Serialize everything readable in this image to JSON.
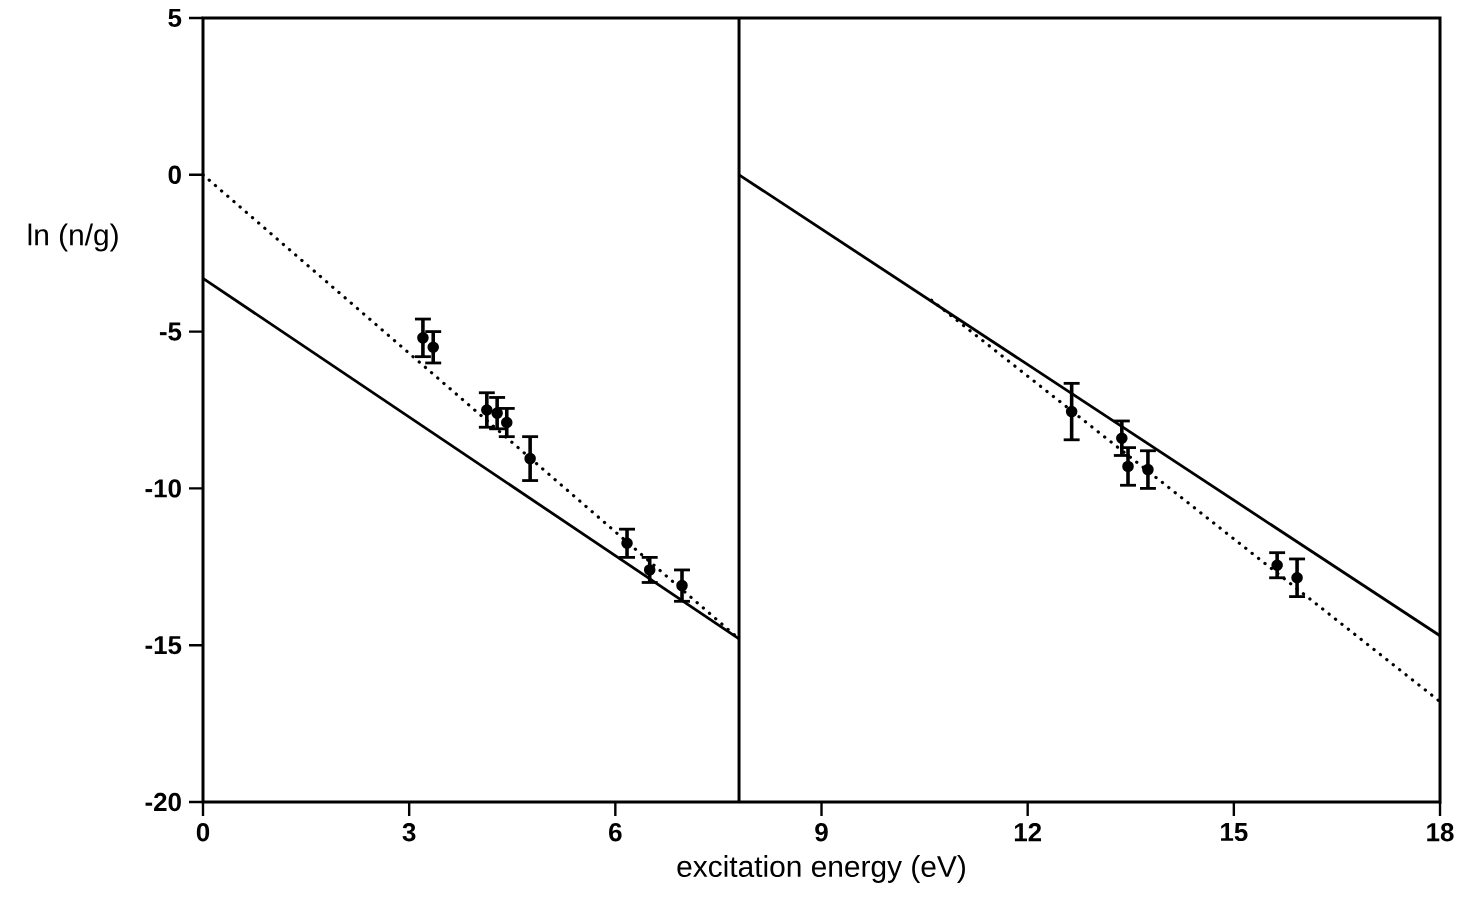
{
  "chart_data": {
    "type": "scatter",
    "xlabel": "excitation  energy  (eV)",
    "ylabel": "ln  (n/g)",
    "xlim": [
      0,
      18
    ],
    "ylim": [
      -20,
      5
    ],
    "xticks": [
      0,
      3,
      6,
      9,
      12,
      15,
      18
    ],
    "yticks": [
      -20,
      -15,
      -10,
      -5,
      0,
      5
    ],
    "marker": "circle",
    "series": [
      {
        "color": "#000000",
        "x": [
          3.2,
          3.35,
          4.13,
          4.28,
          4.42,
          4.76,
          6.17,
          6.5,
          6.97,
          12.64,
          13.37,
          13.46,
          13.75,
          15.63,
          15.92
        ],
        "values": [
          -5.2,
          -5.5,
          -7.5,
          -7.6,
          -7.9,
          -9.05,
          -11.75,
          -12.6,
          -13.1,
          -7.55,
          -8.4,
          -9.3,
          -9.4,
          -12.45,
          -12.85
        ],
        "errors": [
          0.6,
          0.5,
          0.55,
          0.5,
          0.45,
          0.7,
          0.45,
          0.4,
          0.5,
          0.9,
          0.55,
          0.6,
          0.6,
          0.4,
          0.6
        ]
      },
      {
        "type": "line",
        "marker": "none",
        "color": "#000000",
        "line_style": "dotted",
        "x": [
          0,
          7.8
        ],
        "values": [
          0,
          -14.8
        ]
      },
      {
        "type": "line",
        "marker": "none",
        "color": "#000000",
        "line_style": "solid",
        "x": [
          0,
          7.8
        ],
        "values": [
          -3.3,
          -14.8
        ]
      },
      {
        "type": "line",
        "marker": "none",
        "color": "#000000",
        "line_style": "solid",
        "x": [
          7.8,
          18
        ],
        "values": [
          0,
          -14.7
        ]
      },
      {
        "type": "line",
        "marker": "none",
        "color": "#000000",
        "line_style": "dotted",
        "x": [
          10.6,
          18
        ],
        "values": [
          -4.0,
          -16.8
        ]
      }
    ],
    "ref_lines": [
      {
        "axis": "x",
        "value": 7.8,
        "color": "#000000",
        "line_style": "solid"
      }
    ]
  }
}
